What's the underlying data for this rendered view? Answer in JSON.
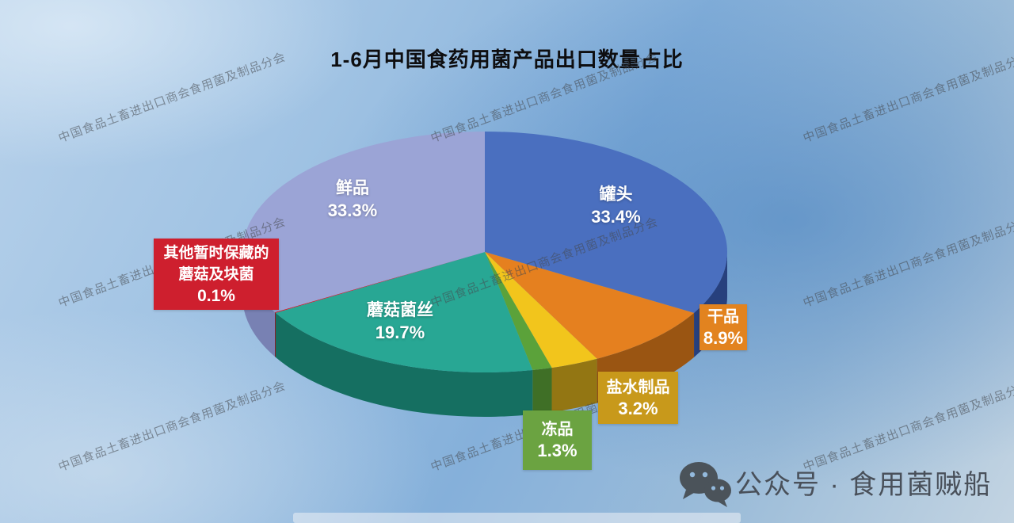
{
  "header": {
    "title": "1-6月中国食药用菌产品出口数量占比"
  },
  "watermark": {
    "text": "中国食品土畜进出口商会食用菌及制品分会"
  },
  "footer": {
    "icon_name": "wechat-icon",
    "account_text": "公众号 · 食用菌贼船"
  },
  "chart_data": {
    "type": "pie",
    "style": "3d",
    "title": "1-6月中国食药用菌产品出口数量占比",
    "unit": "percent",
    "direction": "clockwise",
    "start_angle_deg": 0,
    "total": 99.9,
    "slices": [
      {
        "label": "罐头",
        "value": 33.4,
        "pct_text": "33.4%",
        "color": "#4a6fbf",
        "side_color": "#27407d",
        "label_style": "on-slice"
      },
      {
        "label": "干品",
        "value": 8.9,
        "pct_text": "8.9%",
        "color": "#e5801f",
        "side_color": "#9a5512",
        "label_style": "callout",
        "callout_color": "#e2831f"
      },
      {
        "label": "盐水制品",
        "value": 3.2,
        "pct_text": "3.2%",
        "color": "#f2c51c",
        "side_color": "#937613",
        "label_style": "callout",
        "callout_color": "#c8991b"
      },
      {
        "label": "冻品",
        "value": 1.3,
        "pct_text": "1.3%",
        "color": "#5ba23a",
        "side_color": "#3f6f26",
        "label_style": "callout",
        "callout_color": "#6ba341"
      },
      {
        "label": "蘑菇菌丝",
        "value": 19.7,
        "pct_text": "19.7%",
        "color": "#28a794",
        "side_color": "#156f61",
        "label_style": "on-slice"
      },
      {
        "label": "其他暂时保藏的蘑菇及块菌",
        "label_line1": "其他暂时保藏的",
        "label_line2": "蘑菇及块菌",
        "value": 0.1,
        "pct_text": "0.1%",
        "color": "#cf1f2e",
        "side_color": "#8a1520",
        "label_style": "callout",
        "callout_color": "#ce1f2e"
      },
      {
        "label": "鲜品",
        "value": 33.3,
        "pct_text": "33.3%",
        "color": "#9ba4d6",
        "side_color": "#7881b3",
        "label_style": "on-slice"
      }
    ]
  }
}
